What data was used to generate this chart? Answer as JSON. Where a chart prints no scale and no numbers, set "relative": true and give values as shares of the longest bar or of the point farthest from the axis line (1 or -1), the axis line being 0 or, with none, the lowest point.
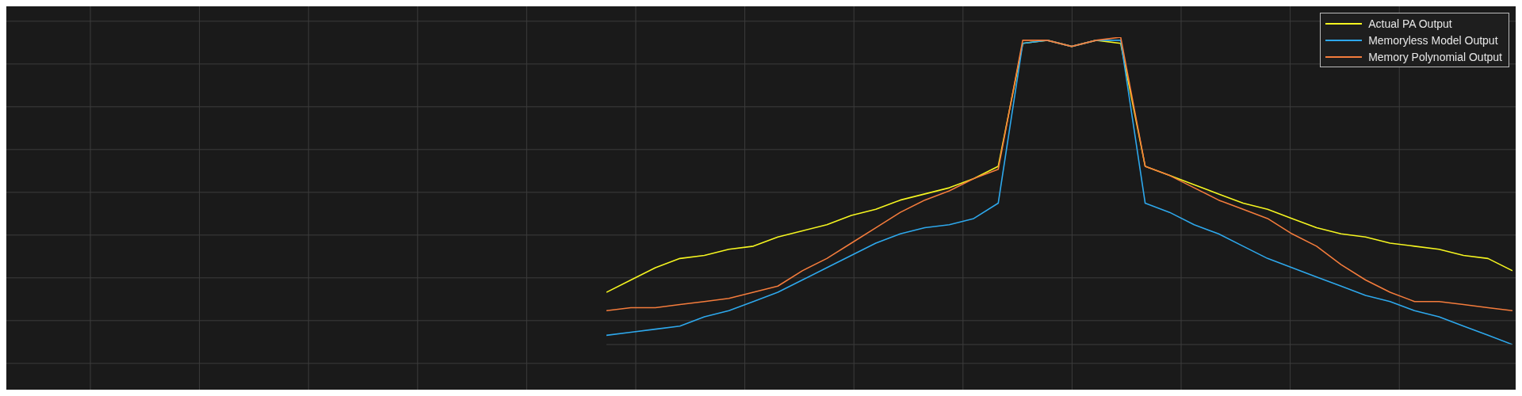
{
  "chart_data": {
    "type": "line",
    "relative": true,
    "grid": true,
    "legend": "top right",
    "tick_labels": false,
    "categories": [
      null,
      null,
      null,
      null,
      null,
      null,
      null,
      null,
      null,
      null,
      null,
      null,
      null,
      null,
      null,
      null,
      null,
      null,
      null,
      null,
      null,
      null,
      null,
      null,
      null,
      null,
      null,
      null,
      null,
      null,
      null,
      null,
      null,
      null,
      null,
      null,
      null,
      null
    ],
    "series": [
      {
        "name": "Actual PA Output",
        "color": "#f5f520",
        "values": [
          0.17,
          0.21,
          0.25,
          0.28,
          0.29,
          0.31,
          0.32,
          0.35,
          0.37,
          0.39,
          0.42,
          0.44,
          0.47,
          0.49,
          0.51,
          0.54,
          0.58,
          0.98,
          0.99,
          0.97,
          0.99,
          0.98,
          0.58,
          0.55,
          0.52,
          0.49,
          0.46,
          0.44,
          0.41,
          0.38,
          0.36,
          0.35,
          0.33,
          0.32,
          0.31,
          0.29,
          0.28,
          0.24
        ]
      },
      {
        "name": "Memoryless Model Output",
        "color": "#2ea8ec",
        "values": [
          0.03,
          0.04,
          0.05,
          0.06,
          0.09,
          0.11,
          0.14,
          0.17,
          0.21,
          0.25,
          0.29,
          0.33,
          0.36,
          0.38,
          0.39,
          0.41,
          0.46,
          0.98,
          0.99,
          0.97,
          0.99,
          0.99,
          0.46,
          0.43,
          0.39,
          0.36,
          0.32,
          0.28,
          0.25,
          0.22,
          0.19,
          0.16,
          0.14,
          0.11,
          0.09,
          0.06,
          0.03,
          0
        ]
      },
      {
        "name": "Memory Polynomial Output",
        "color": "#f47c3c",
        "values": [
          0.11,
          0.12,
          0.12,
          0.13,
          0.14,
          0.15,
          0.17,
          0.19,
          0.24,
          0.28,
          0.33,
          0.38,
          0.43,
          0.47,
          0.5,
          0.54,
          0.57,
          0.99,
          0.99,
          0.97,
          0.99,
          1,
          0.58,
          0.55,
          0.51,
          0.47,
          0.44,
          0.41,
          0.36,
          0.32,
          0.26,
          0.21,
          0.17,
          0.14,
          0.14,
          0.13,
          0.12,
          0.11
        ]
      }
    ]
  }
}
